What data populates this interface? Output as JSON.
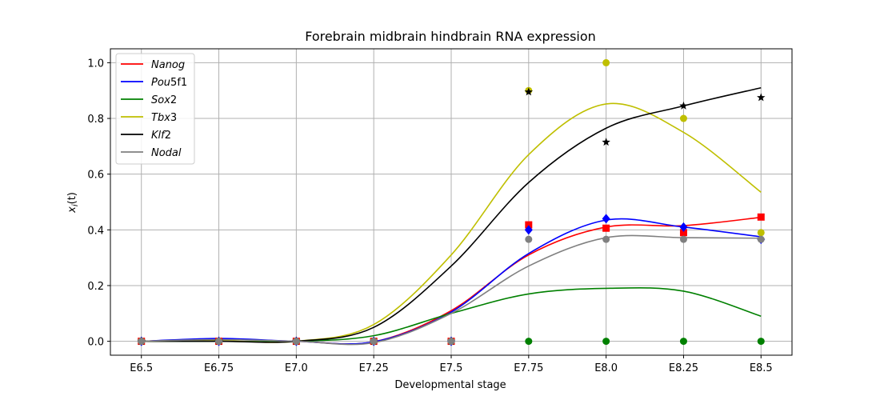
{
  "chart_data": {
    "type": "line",
    "title": "Forebrain midbrain hindbrain RNA expression",
    "xlabel": "Developmental stage",
    "ylabel": "x_i(t)",
    "categories": [
      "E6.5",
      "E6.75",
      "E7.0",
      "E7.25",
      "E7.5",
      "E7.75",
      "E8.0",
      "E8.25",
      "E8.5"
    ],
    "x": [
      6.5,
      6.75,
      7.0,
      7.25,
      7.5,
      7.75,
      8.0,
      8.25,
      8.5
    ],
    "xlim": [
      6.4,
      8.6
    ],
    "ylim": [
      -0.05,
      1.05
    ],
    "yticks": [
      "0.0",
      "0.2",
      "0.4",
      "0.6",
      "0.8",
      "1.0"
    ],
    "grid": true,
    "legend_position": "upper-left",
    "series": [
      {
        "name": "Nanog",
        "color": "#ff0000",
        "marker": "square",
        "points": [
          0,
          0,
          0,
          0,
          0,
          0.418,
          0.406,
          0.39,
          0.446
        ],
        "curve": [
          0,
          0.008,
          0,
          -0.002,
          0.11,
          0.31,
          0.41,
          0.415,
          0.445
        ]
      },
      {
        "name": "Pou5f1",
        "color": "#0000ff",
        "marker": "diamond",
        "points": [
          0,
          0,
          0,
          0,
          0,
          0.4,
          0.44,
          0.41,
          0.366
        ],
        "curve": [
          0,
          0.01,
          0,
          -0.002,
          0.105,
          0.315,
          0.435,
          0.41,
          0.375
        ]
      },
      {
        "name": "Sox2",
        "color": "#008000",
        "marker": "circle",
        "points": [
          0,
          0,
          0,
          0,
          0,
          0,
          0,
          0,
          0
        ],
        "curve": [
          0,
          0,
          0,
          0.02,
          0.1,
          0.17,
          0.19,
          0.18,
          0.09
        ]
      },
      {
        "name": "Tbx3",
        "color": "#bfbf00",
        "marker": "circle",
        "points": [
          0,
          0,
          0,
          0,
          0,
          0.9,
          1.0,
          0.8,
          0.39
        ],
        "curve": [
          0,
          0.002,
          0,
          0.06,
          0.31,
          0.67,
          0.852,
          0.75,
          0.535
        ]
      },
      {
        "name": "Klf2",
        "color": "#000000",
        "marker": "star",
        "points": [
          0,
          0,
          0,
          0,
          0,
          0.895,
          0.715,
          0.845,
          0.875
        ],
        "curve": [
          0,
          0,
          0,
          0.05,
          0.27,
          0.57,
          0.765,
          0.845,
          0.91
        ]
      },
      {
        "name": "Nodal",
        "color": "#808080",
        "marker": "circle",
        "points": [
          0,
          0,
          0,
          0,
          0,
          0.366,
          0.366,
          0.366,
          0.366
        ],
        "curve": [
          0,
          0.006,
          0,
          -0.005,
          0.1,
          0.27,
          0.372,
          0.372,
          0.37
        ]
      }
    ]
  }
}
